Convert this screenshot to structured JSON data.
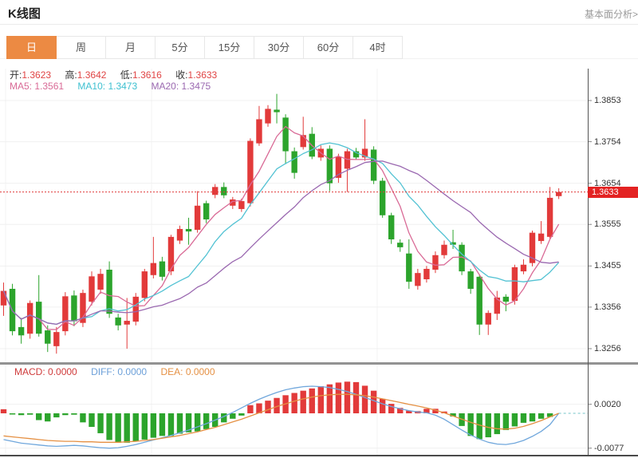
{
  "header": {
    "title": "K线图",
    "link_label": "基本面分析>"
  },
  "tabs": {
    "items": [
      {
        "label": "日",
        "active": true
      },
      {
        "label": "周",
        "active": false
      },
      {
        "label": "月",
        "active": false
      },
      {
        "label": "5分",
        "active": false
      },
      {
        "label": "15分",
        "active": false
      },
      {
        "label": "30分",
        "active": false
      },
      {
        "label": "60分",
        "active": false
      },
      {
        "label": "4时",
        "active": false
      }
    ]
  },
  "main_chart": {
    "ohlc_info": {
      "open_label": "开:",
      "open_value": "1.3623",
      "high_label": "高:",
      "high_value": "1.3642",
      "low_label": "低:",
      "low_value": "1.3616",
      "close_label": "收:",
      "close_value": "1.3633"
    },
    "ma_info": {
      "ma5_label": "MA5:",
      "ma5_value": "1.3561",
      "ma10_label": "MA10:",
      "ma10_value": "1.3473",
      "ma20_label": "MA20:",
      "ma20_value": "1.3475"
    },
    "y_axis": [
      "1.3853",
      "1.3754",
      "1.3654",
      "1.3555",
      "1.3455",
      "1.3356",
      "1.3256"
    ],
    "price_marker": "1.3633"
  },
  "macd_panel": {
    "info": {
      "macd_label": "MACD:",
      "macd_value": "0.0000",
      "diff_label": "DIFF:",
      "diff_value": "0.0000",
      "dea_label": "DEA:",
      "dea_value": "0.0000"
    },
    "y_axis": [
      "0.0020",
      "-0.0077"
    ]
  },
  "colors": {
    "up": "#e23a3a",
    "down": "#2ca42c",
    "ma5": "#d96a96",
    "ma10": "#52c2d3",
    "ma20": "#9a68b0",
    "diff": "#70a7dc",
    "dea": "#e59043",
    "accent": "#ec8a43",
    "price_marker_bg": "#e32222",
    "dotted_line": "#e03b3b",
    "zero_dash": "#74c6c9",
    "grid": "#f0f0f0"
  },
  "chart_data": {
    "type": "candlestick",
    "title": "K线图",
    "legend": [
      "MA5",
      "MA10",
      "MA20",
      "MACD",
      "DIFF",
      "DEA"
    ],
    "price_ticks": [
      1.3853,
      1.3754,
      1.3654,
      1.3555,
      1.3455,
      1.3356,
      1.3256
    ],
    "macd_ticks": [
      0.002,
      -0.0077
    ],
    "current_price": 1.3633,
    "ma_windows": [
      5,
      10,
      20
    ],
    "candles": [
      [
        1.336,
        1.3415,
        1.3335,
        1.3395
      ],
      [
        1.34,
        1.3412,
        1.3288,
        1.3298
      ],
      [
        1.3308,
        1.333,
        1.3268,
        1.3288
      ],
      [
        1.3292,
        1.3372,
        1.328,
        1.3366
      ],
      [
        1.3369,
        1.3433,
        1.3285,
        1.3292
      ],
      [
        1.33,
        1.3312,
        1.3248,
        1.3268
      ],
      [
        1.3262,
        1.3308,
        1.3244,
        1.3296
      ],
      [
        1.3298,
        1.3392,
        1.3288,
        1.3382
      ],
      [
        1.3384,
        1.3396,
        1.331,
        1.3322
      ],
      [
        1.3318,
        1.3398,
        1.3308,
        1.339
      ],
      [
        1.3369,
        1.3442,
        1.336,
        1.343
      ],
      [
        1.3398,
        1.3448,
        1.3388,
        1.3436
      ],
      [
        1.3446,
        1.3466,
        1.333,
        1.334
      ],
      [
        1.3331,
        1.334,
        1.33,
        1.3312
      ],
      [
        1.3314,
        1.3378,
        1.3256,
        1.3323
      ],
      [
        1.3321,
        1.339,
        1.3312,
        1.3381
      ],
      [
        1.3378,
        1.3448,
        1.337,
        1.3442
      ],
      [
        1.3433,
        1.3525,
        1.3425,
        1.3462
      ],
      [
        1.3466,
        1.3477,
        1.342,
        1.3429
      ],
      [
        1.3442,
        1.353,
        1.3433,
        1.3525
      ],
      [
        1.3516,
        1.3552,
        1.3508,
        1.3544
      ],
      [
        1.3544,
        1.3571,
        1.3506,
        1.3538
      ],
      [
        1.3542,
        1.3635,
        1.3535,
        1.36
      ],
      [
        1.3606,
        1.3612,
        1.3558,
        1.3567
      ],
      [
        1.3626,
        1.3652,
        1.3618,
        1.3645
      ],
      [
        1.3645,
        1.3656,
        1.3618,
        1.3625
      ],
      [
        1.36,
        1.3621,
        1.3592,
        1.3615
      ],
      [
        1.3592,
        1.3617,
        1.3585,
        1.3611
      ],
      [
        1.3606,
        1.3762,
        1.3598,
        1.3756
      ],
      [
        1.375,
        1.384,
        1.3744,
        1.3808
      ],
      [
        1.3798,
        1.3842,
        1.379,
        1.3833
      ],
      [
        1.3831,
        1.3869,
        1.3798,
        1.3825
      ],
      [
        1.3812,
        1.382,
        1.37,
        1.3731
      ],
      [
        1.3731,
        1.374,
        1.3665,
        1.3679
      ],
      [
        1.3741,
        1.3814,
        1.3735,
        1.377
      ],
      [
        1.3773,
        1.3789,
        1.3712,
        1.3718
      ],
      [
        1.3716,
        1.3745,
        1.3708,
        1.3737
      ],
      [
        1.3737,
        1.3745,
        1.3635,
        1.3654
      ],
      [
        1.3667,
        1.3725,
        1.3655,
        1.3718
      ],
      [
        1.3689,
        1.3737,
        1.3633,
        1.3731
      ],
      [
        1.3731,
        1.3739,
        1.371,
        1.3716
      ],
      [
        1.3716,
        1.3808,
        1.3708,
        1.3737
      ],
      [
        1.3735,
        1.3743,
        1.3652,
        1.366
      ],
      [
        1.366,
        1.3667,
        1.3571,
        1.3577
      ],
      [
        1.3577,
        1.3583,
        1.3508,
        1.3519
      ],
      [
        1.3511,
        1.3519,
        1.3489,
        1.35
      ],
      [
        1.3485,
        1.3519,
        1.34,
        1.3417
      ],
      [
        1.3407,
        1.3448,
        1.3398,
        1.3438
      ],
      [
        1.3423,
        1.3455,
        1.3415,
        1.3448
      ],
      [
        1.3446,
        1.349,
        1.3438,
        1.3481
      ],
      [
        1.3481,
        1.3516,
        1.3473,
        1.3506
      ],
      [
        1.3512,
        1.3542,
        1.3496,
        1.3506
      ],
      [
        1.3506,
        1.3512,
        1.3433,
        1.3442
      ],
      [
        1.3442,
        1.3448,
        1.3388,
        1.34
      ],
      [
        1.3429,
        1.3435,
        1.3289,
        1.3314
      ],
      [
        1.3314,
        1.3348,
        1.3289,
        1.3342
      ],
      [
        1.334,
        1.3395,
        1.3325,
        1.3379
      ],
      [
        1.3381,
        1.3387,
        1.3346,
        1.3369
      ],
      [
        1.3371,
        1.3458,
        1.3362,
        1.3452
      ],
      [
        1.3442,
        1.3471,
        1.3435,
        1.3458
      ],
      [
        1.3462,
        1.354,
        1.3454,
        1.3535
      ],
      [
        1.3515,
        1.3563,
        1.3508,
        1.3533
      ],
      [
        1.3525,
        1.3645,
        1.3519,
        1.3619
      ],
      [
        1.3623,
        1.3642,
        1.3616,
        1.3633
      ]
    ],
    "macd_hist": [
      0.0009,
      -0.0002,
      -0.0004,
      -0.0003,
      -0.0015,
      -0.0018,
      -0.0009,
      -0.0004,
      -0.0003,
      -0.002,
      -0.003,
      -0.0044,
      -0.0059,
      -0.0065,
      -0.0065,
      -0.0062,
      -0.0058,
      -0.0054,
      -0.005,
      -0.005,
      -0.0045,
      -0.0042,
      -0.004,
      -0.0035,
      -0.003,
      -0.002,
      -0.0012,
      -0.0005,
      0.0018,
      0.0022,
      0.0028,
      0.0034,
      0.004,
      0.0045,
      0.005,
      0.0055,
      0.006,
      0.0064,
      0.0068,
      0.007,
      0.0069,
      0.0061,
      0.005,
      0.0032,
      0.0021,
      0.0012,
      0.0006,
      0.0005,
      0.001,
      0.001,
      0.0004,
      -0.0007,
      -0.0028,
      -0.005,
      -0.0057,
      -0.0053,
      -0.0046,
      -0.0037,
      -0.0029,
      -0.0021,
      -0.0018,
      -0.0012,
      -0.0008,
      0.0
    ],
    "diff": [
      -0.0058,
      -0.0062,
      -0.0066,
      -0.0068,
      -0.007,
      -0.0072,
      -0.0073,
      -0.0072,
      -0.0071,
      -0.0072,
      -0.0074,
      -0.0076,
      -0.0077,
      -0.0076,
      -0.0073,
      -0.0069,
      -0.0064,
      -0.0059,
      -0.0054,
      -0.0049,
      -0.0043,
      -0.0037,
      -0.003,
      -0.0023,
      -0.0015,
      -0.0007,
      0.0002,
      0.0012,
      0.0022,
      0.0031,
      0.0039,
      0.0046,
      0.0052,
      0.0056,
      0.0059,
      0.006,
      0.0059,
      0.0057,
      0.0053,
      0.0048,
      0.0042,
      0.0035,
      0.0028,
      0.0021,
      0.0015,
      0.001,
      0.0006,
      0.0003,
      0.0001,
      -0.0004,
      -0.0013,
      -0.0025,
      -0.0037,
      -0.0048,
      -0.0057,
      -0.0064,
      -0.0068,
      -0.0069,
      -0.0066,
      -0.006,
      -0.0051,
      -0.004,
      -0.0025,
      0.0
    ],
    "dea": [
      -0.005,
      -0.0052,
      -0.0054,
      -0.0056,
      -0.0058,
      -0.006,
      -0.0061,
      -0.0062,
      -0.0062,
      -0.0063,
      -0.0063,
      -0.0064,
      -0.0064,
      -0.0064,
      -0.0063,
      -0.0062,
      -0.006,
      -0.0058,
      -0.0055,
      -0.0052,
      -0.0049,
      -0.0045,
      -0.0041,
      -0.0036,
      -0.0031,
      -0.0025,
      -0.0019,
      -0.0013,
      -0.0006,
      0.0001,
      0.0008,
      0.0015,
      0.0021,
      0.0027,
      0.0032,
      0.0036,
      0.0039,
      0.0041,
      0.0042,
      0.0042,
      0.0041,
      0.0039,
      0.0036,
      0.0032,
      0.0028,
      0.0024,
      0.002,
      0.0016,
      0.0012,
      0.0007,
      0.0001,
      -0.0006,
      -0.0013,
      -0.002,
      -0.0026,
      -0.0031,
      -0.0034,
      -0.0035,
      -0.0033,
      -0.0029,
      -0.0023,
      -0.0016,
      -0.0008,
      0.0
    ]
  }
}
